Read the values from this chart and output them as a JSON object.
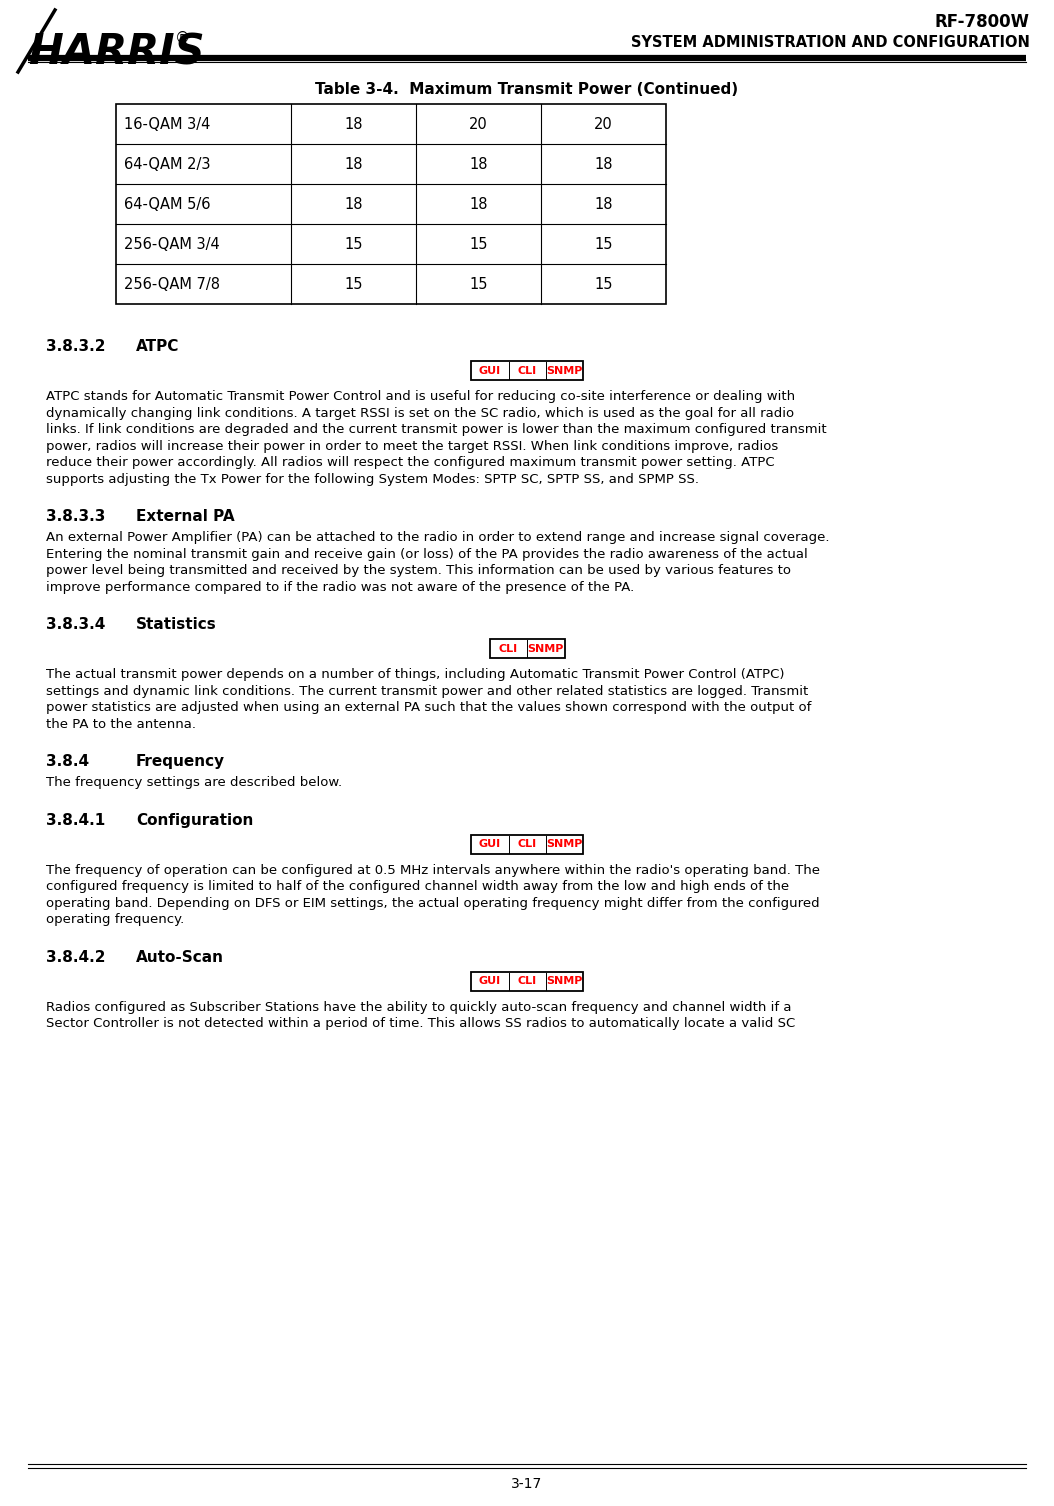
{
  "header_right_line1": "RF-7800W",
  "header_right_line2": "SYSTEM ADMINISTRATION AND CONFIGURATION",
  "page_number": "3-17",
  "table_title": "Table 3-4.  Maximum Transmit Power (Continued)",
  "table_rows": [
    [
      "16-QAM 3/4",
      "18",
      "20",
      "20"
    ],
    [
      "64-QAM 2/3",
      "18",
      "18",
      "18"
    ],
    [
      "64-QAM 5/6",
      "18",
      "18",
      "18"
    ],
    [
      "256-QAM 3/4",
      "15",
      "15",
      "15"
    ],
    [
      "256-QAM 7/8",
      "15",
      "15",
      "15"
    ]
  ],
  "section_382_num": "3.8.3.2",
  "section_382_title": "ATPC",
  "section_382_badges": [
    "GUI",
    "CLI",
    "SNMP"
  ],
  "section_382_lines": [
    "ATPC stands for Automatic Transmit Power Control and is useful for reducing co-site interference or dealing with",
    "dynamically changing link conditions. A target RSSI is set on the SC radio, which is used as the goal for all radio",
    "links. If link conditions are degraded and the current transmit power is lower than the maximum configured transmit",
    "power, radios will increase their power in order to meet the target RSSI. When link conditions improve, radios",
    "reduce their power accordingly. All radios will respect the configured maximum transmit power setting. ATPC",
    "supports adjusting the Tx Power for the following System Modes: SPTP SC, SPTP SS, and SPMP SS."
  ],
  "section_383_num": "3.8.3.3",
  "section_383_title": "External PA",
  "section_383_lines": [
    "An external Power Amplifier (PA) can be attached to the radio in order to extend range and increase signal coverage.",
    "Entering the nominal transmit gain and receive gain (or loss) of the PA provides the radio awareness of the actual",
    "power level being transmitted and received by the system. This information can be used by various features to",
    "improve performance compared to if the radio was not aware of the presence of the PA."
  ],
  "section_384_num": "3.8.3.4",
  "section_384_title": "Statistics",
  "section_384_badges": [
    "CLI",
    "SNMP"
  ],
  "section_384_lines": [
    "The actual transmit power depends on a number of things, including Automatic Transmit Power Control (ATPC)",
    "settings and dynamic link conditions. The current transmit power and other related statistics are logged. Transmit",
    "power statistics are adjusted when using an external PA such that the values shown correspond with the output of",
    "the PA to the antenna."
  ],
  "section_385_num": "3.8.4",
  "section_385_title": "Frequency",
  "section_385_lines": [
    "The frequency settings are described below."
  ],
  "section_386_num": "3.8.4.1",
  "section_386_title": "Configuration",
  "section_386_badges": [
    "GUI",
    "CLI",
    "SNMP"
  ],
  "section_386_lines": [
    "The frequency of operation can be configured at 0.5 MHz intervals anywhere within the radio's operating band. The",
    "configured frequency is limited to half of the configured channel width away from the low and high ends of the",
    "operating band. Depending on DFS or EIM settings, the actual operating frequency might differ from the configured",
    "operating frequency."
  ],
  "section_387_num": "3.8.4.2",
  "section_387_title": "Auto-Scan",
  "section_387_badges": [
    "GUI",
    "CLI",
    "SNMP"
  ],
  "section_387_lines": [
    "Radios configured as Subscriber Stations have the ability to quickly auto-scan frequency and channel width if a",
    "Sector Controller is not detected within a period of time. This allows SS radios to automatically locate a valid SC"
  ],
  "bg": "#ffffff",
  "black": "#000000",
  "red": "#ff0000"
}
